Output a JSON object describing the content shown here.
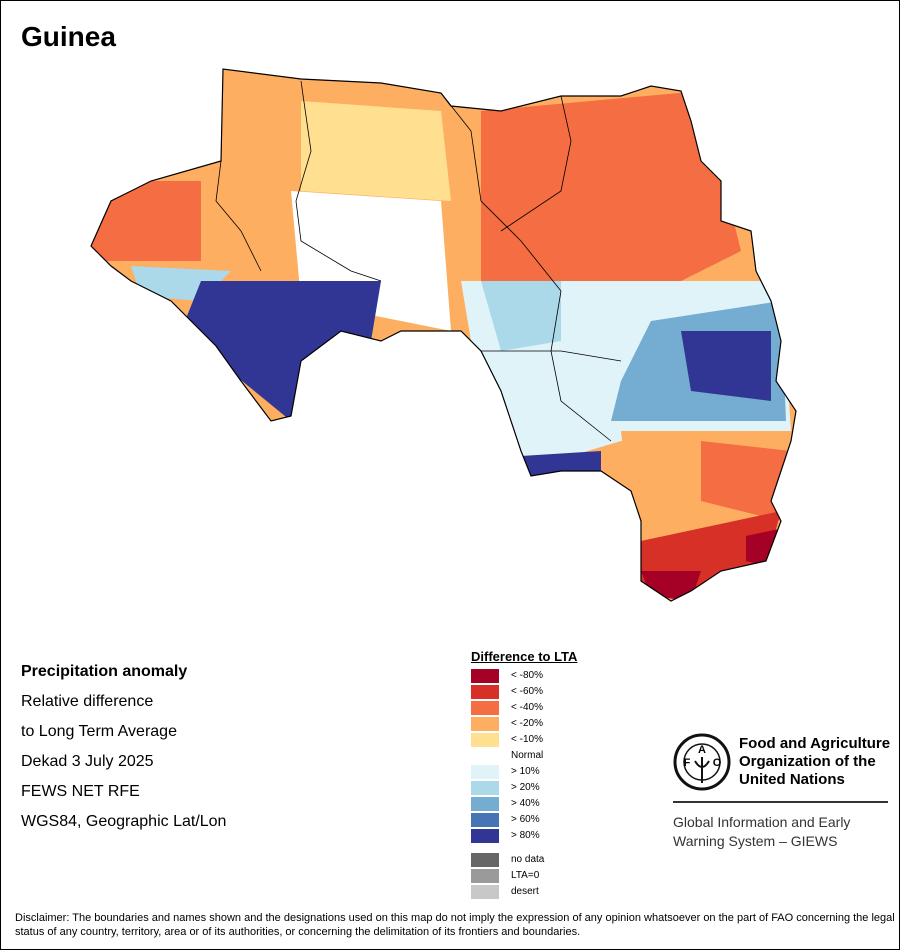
{
  "title": "Guinea",
  "info": {
    "heading": "Precipitation anomaly",
    "line1": "Relative difference",
    "line2": "to Long Term Average",
    "period": "Dekad 3 July 2025",
    "source": "FEWS NET RFE",
    "projection": "WGS84, Geographic Lat/Lon"
  },
  "legend": {
    "title": "Difference to LTA",
    "items": [
      {
        "label": "< -80%",
        "color": "#a50026"
      },
      {
        "label": "< -60%",
        "color": "#d73027"
      },
      {
        "label": "< -40%",
        "color": "#f46d43"
      },
      {
        "label": "< -20%",
        "color": "#fdae61"
      },
      {
        "label": "< -10%",
        "color": "#fee090"
      },
      {
        "label": "Normal",
        "color": "#ffffff"
      },
      {
        "label": "> 10%",
        "color": "#e0f3f8"
      },
      {
        "label": "> 20%",
        "color": "#abd9e9"
      },
      {
        "label": "> 40%",
        "color": "#74add1"
      },
      {
        "label": "> 60%",
        "color": "#4575b4"
      },
      {
        "label": "> 80%",
        "color": "#313695"
      }
    ],
    "extra": [
      {
        "label": "no data",
        "color": "#676767"
      },
      {
        "label": "LTA=0",
        "color": "#9a9a9a"
      },
      {
        "label": "desert",
        "color": "#c8c8c8"
      }
    ]
  },
  "fao": {
    "logo_text": "FAO FIAT PANIS",
    "name1": "Food and Agriculture",
    "name2": "Organization of the",
    "name3": "United Nations",
    "giews1": "Global Information and Early",
    "giews2": "Warning System – GIEWS"
  },
  "disclaimer": "Disclaimer: The boundaries and names shown and the designations used on this map do not imply the expression of any opinion whatsoever on the part of FAO concerning the legal status of any country, territory, area or of its authorities, or concerning the delimitation of its frontiers and boundaries."
}
